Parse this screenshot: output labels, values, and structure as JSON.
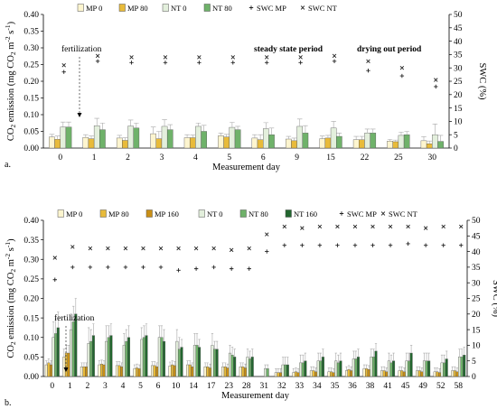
{
  "colors": {
    "MP0": "#fdf5cf",
    "MP80": "#e8bb3a",
    "MP160": "#c98f16",
    "NT0": "#e3efdc",
    "NT80": "#6fb26a",
    "NT160": "#22662f",
    "edge": "#555555",
    "err": "#a8a8a8",
    "swc": "#222222"
  },
  "chart_data": [
    {
      "panel_label": "a.",
      "type": "bar",
      "xlabel": "Measurement day",
      "ylabel_parts": [
        "CO",
        "2",
        " emission (mg CO",
        "2",
        " m",
        "-2",
        " s",
        "-1",
        ")"
      ],
      "ylabel2": "SWC (%)",
      "ylim": [
        0,
        0.4
      ],
      "yticks": [
        "0.00",
        "0.05",
        "0.10",
        "0.15",
        "0.20",
        "0.25",
        "0.30",
        "0.35",
        "0.40"
      ],
      "ylim2": [
        0,
        50
      ],
      "yticks2": [
        "0",
        "5",
        "10",
        "15",
        "20",
        "25",
        "30",
        "35",
        "40",
        "45",
        "50"
      ],
      "categories": [
        "0",
        "1",
        "2",
        "3",
        "4",
        "5",
        "6",
        "9",
        "15",
        "22",
        "25",
        "30"
      ],
      "legend": [
        "MP 0",
        "MP 80",
        "NT 0",
        "NT 80",
        "SWC MP",
        "SWC NT"
      ],
      "annotations": [
        "fertilization",
        "steady state period",
        "drying out period"
      ],
      "series": [
        {
          "name": "MP 0",
          "values": [
            0.033,
            0.032,
            0.03,
            0.043,
            0.031,
            0.037,
            0.03,
            0.027,
            0.028,
            0.025,
            0.021,
            0.022
          ],
          "err": [
            0.008,
            0.008,
            0.008,
            0.02,
            0.009,
            0.008,
            0.01,
            0.008,
            0.008,
            0.01,
            0.005,
            0.012
          ]
        },
        {
          "name": "MP 80",
          "values": [
            0.026,
            0.028,
            0.023,
            0.028,
            0.031,
            0.033,
            0.025,
            0.022,
            0.03,
            0.025,
            0.019,
            0.013
          ],
          "err": [
            0.01,
            0.008,
            0.008,
            0.022,
            0.008,
            0.008,
            0.015,
            0.008,
            0.008,
            0.01,
            0.005,
            0.008
          ]
        },
        {
          "name": "NT 0",
          "values": [
            0.063,
            0.067,
            0.066,
            0.065,
            0.065,
            0.062,
            0.058,
            0.065,
            0.06,
            0.045,
            0.038,
            0.04
          ],
          "err": [
            0.015,
            0.022,
            0.018,
            0.02,
            0.01,
            0.015,
            0.018,
            0.022,
            0.02,
            0.012,
            0.01,
            0.032
          ]
        },
        {
          "name": "NT 80",
          "values": [
            0.063,
            0.055,
            0.06,
            0.055,
            0.05,
            0.055,
            0.04,
            0.045,
            0.035,
            0.045,
            0.04,
            0.02
          ],
          "err": [
            0.015,
            0.02,
            0.015,
            0.015,
            0.018,
            0.01,
            0.02,
            0.022,
            0.01,
            0.012,
            0.01,
            0.018
          ]
        }
      ],
      "swc": [
        {
          "name": "SWC MP",
          "values": [
            28.5,
            32.5,
            32,
            32,
            32,
            32,
            32,
            32,
            32.5,
            29,
            27,
            23
          ]
        },
        {
          "name": "SWC NT",
          "values": [
            31,
            34.5,
            34,
            34,
            34,
            34,
            34,
            34,
            34.5,
            32.5,
            30,
            25.5
          ]
        }
      ]
    },
    {
      "panel_label": "b.",
      "type": "bar",
      "xlabel": "Measurement day",
      "ylabel_parts": [
        "CO",
        "2",
        " emission (mg CO",
        "2",
        " m",
        "-2",
        " s",
        "-1",
        ")"
      ],
      "ylabel2": "SWC (%)",
      "ylim": [
        0,
        0.4
      ],
      "yticks": [
        "0.00",
        "0.05",
        "0.10",
        "0.15",
        "0.20",
        "0.25",
        "0.30",
        "0.35",
        "0.40"
      ],
      "ylim2": [
        0,
        50
      ],
      "yticks2": [
        "0",
        "5",
        "10",
        "15",
        "20",
        "25",
        "30",
        "35",
        "40",
        "45",
        "50"
      ],
      "categories": [
        "0",
        "1",
        "2",
        "3",
        "4",
        "5",
        "6",
        "10",
        "14",
        "17",
        "23",
        "28",
        "31",
        "32",
        "33",
        "34",
        "35",
        "36",
        "38",
        "41",
        "45",
        "49",
        "52",
        "58"
      ],
      "legend": [
        "MP 0",
        "MP 80",
        "MP 160",
        "NT 0",
        "NT 80",
        "NT 160",
        "SWC MP",
        "SWC NT"
      ],
      "annotations": [
        "fertilization"
      ],
      "series": [
        {
          "name": "MP 0",
          "values": [
            0.03,
            0.05,
            0.025,
            0.03,
            0.028,
            0.02,
            0.028,
            0.027,
            0.03,
            0.025,
            0.025,
            0.025,
            0,
            0.01,
            0.01,
            0.015,
            0.012,
            0.015,
            0.02,
            0.015,
            0.015,
            0.015,
            0.012,
            0.015
          ],
          "err": [
            0.01,
            0.02,
            0.01,
            0.01,
            0.01,
            0.01,
            0.01,
            0.01,
            0.01,
            0.01,
            0.01,
            0.01,
            0,
            0.01,
            0.01,
            0.01,
            0.01,
            0.01,
            0.01,
            0.01,
            0.01,
            0.01,
            0.01,
            0.01
          ]
        },
        {
          "name": "MP 80",
          "values": [
            0.035,
            0.06,
            0.025,
            0.032,
            0.028,
            0.022,
            0.028,
            0.03,
            0.03,
            0.025,
            0.025,
            0.025,
            0,
            0.01,
            0.012,
            0.015,
            0.012,
            0.018,
            0.02,
            0.015,
            0.015,
            0.015,
            0.012,
            0.015
          ],
          "err": [
            0.01,
            0.02,
            0.01,
            0.01,
            0.01,
            0.01,
            0.01,
            0.01,
            0.01,
            0.01,
            0.01,
            0.01,
            0,
            0.01,
            0.01,
            0.01,
            0.01,
            0.01,
            0.01,
            0.01,
            0.01,
            0.01,
            0.01,
            0.01
          ]
        },
        {
          "name": "MP 160",
          "values": [
            0.03,
            0.06,
            0.025,
            0.03,
            0.025,
            0.02,
            0.025,
            0.028,
            0.025,
            0.022,
            0.022,
            0.022,
            0,
            0.01,
            0.01,
            0.012,
            0.01,
            0.015,
            0.018,
            0.012,
            0.012,
            0.012,
            0.01,
            0.012
          ],
          "err": [
            0.01,
            0.02,
            0.01,
            0.01,
            0.01,
            0.01,
            0.01,
            0.01,
            0.01,
            0.01,
            0.01,
            0.01,
            0,
            0.01,
            0.01,
            0.01,
            0.01,
            0.01,
            0.01,
            0.01,
            0.01,
            0.01,
            0.01,
            0.01
          ]
        },
        {
          "name": "NT 0",
          "values": [
            0.1,
            0.12,
            0.085,
            0.09,
            0.08,
            0.095,
            0.1,
            0.09,
            0.08,
            0.08,
            0.06,
            0.05,
            0.02,
            0.03,
            0.035,
            0.04,
            0.04,
            0.045,
            0.05,
            0.04,
            0.04,
            0.04,
            0.035,
            0.05
          ],
          "err": [
            0.04,
            0.04,
            0.04,
            0.04,
            0.03,
            0.03,
            0.03,
            0.03,
            0.03,
            0.03,
            0.02,
            0.02,
            0.01,
            0.02,
            0.02,
            0.02,
            0.02,
            0.02,
            0.02,
            0.02,
            0.02,
            0.02,
            0.02,
            0.02
          ]
        },
        {
          "name": "NT 80",
          "values": [
            0.11,
            0.14,
            0.09,
            0.1,
            0.09,
            0.1,
            0.1,
            0.07,
            0.08,
            0.07,
            0.055,
            0.045,
            0.02,
            0.03,
            0.035,
            0.04,
            0.035,
            0.045,
            0.05,
            0.035,
            0.04,
            0.04,
            0.035,
            0.05
          ],
          "err": [
            0.04,
            0.04,
            0.03,
            0.03,
            0.03,
            0.03,
            0.03,
            0.03,
            0.03,
            0.02,
            0.02,
            0.02,
            0.01,
            0.02,
            0.02,
            0.02,
            0.02,
            0.02,
            0.02,
            0.02,
            0.02,
            0.02,
            0.02,
            0.02
          ]
        },
        {
          "name": "NT 160",
          "values": [
            0.125,
            0.16,
            0.105,
            0.105,
            0.1,
            0.105,
            0.09,
            0.075,
            0.075,
            0.07,
            0.05,
            0.05,
            0,
            0.03,
            0.04,
            0.05,
            0.04,
            0.05,
            0.065,
            0.04,
            0.06,
            0.04,
            0.045,
            0.055
          ],
          "err": [
            0.04,
            0.04,
            0.03,
            0.03,
            0.03,
            0.03,
            0.03,
            0.02,
            0.02,
            0.02,
            0.02,
            0.02,
            0,
            0.02,
            0.02,
            0.02,
            0.02,
            0.02,
            0.02,
            0.02,
            0.02,
            0.02,
            0.02,
            0.02
          ]
        }
      ],
      "swc": [
        {
          "name": "SWC MP",
          "values": [
            31,
            35,
            35,
            35,
            35,
            35,
            35,
            34,
            34.5,
            35,
            34.5,
            34.5,
            40,
            42,
            42,
            42,
            42,
            42,
            42,
            42,
            42.5,
            42,
            42,
            42
          ]
        },
        {
          "name": "SWC NT",
          "values": [
            38,
            41.5,
            41,
            41,
            41,
            41,
            41,
            41,
            41,
            41,
            40.5,
            41,
            45.5,
            48,
            47.5,
            48,
            48,
            48,
            48,
            48,
            48,
            47.5,
            48,
            48
          ]
        }
      ]
    }
  ]
}
